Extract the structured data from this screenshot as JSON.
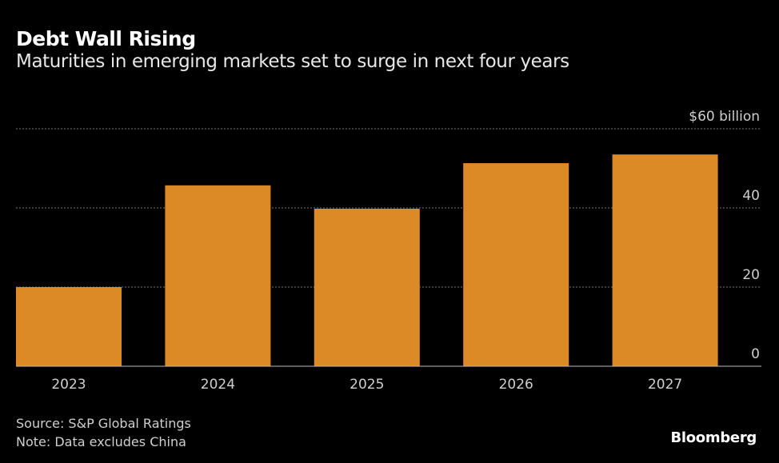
{
  "chart_data": {
    "type": "bar",
    "title": "Debt Wall Rising",
    "subtitle": "Maturities in emerging markets set to surge in next four years",
    "categories": [
      "2023",
      "2024",
      "2025",
      "2026",
      "2027"
    ],
    "values": [
      20,
      45.7,
      39.8,
      51.3,
      53.5
    ],
    "ylabel": "",
    "xlabel": "",
    "ylim": [
      0,
      60
    ],
    "yticks": [
      {
        "value": 0,
        "label": "0"
      },
      {
        "value": 20,
        "label": "20"
      },
      {
        "value": 40,
        "label": "40"
      },
      {
        "value": 60,
        "label": "$60 billion"
      }
    ],
    "grid": true,
    "bar_color": "#dc8a26",
    "source": "Source: S&P Global Ratings",
    "note": "Note: Data excludes China",
    "brand": "Bloomberg"
  }
}
